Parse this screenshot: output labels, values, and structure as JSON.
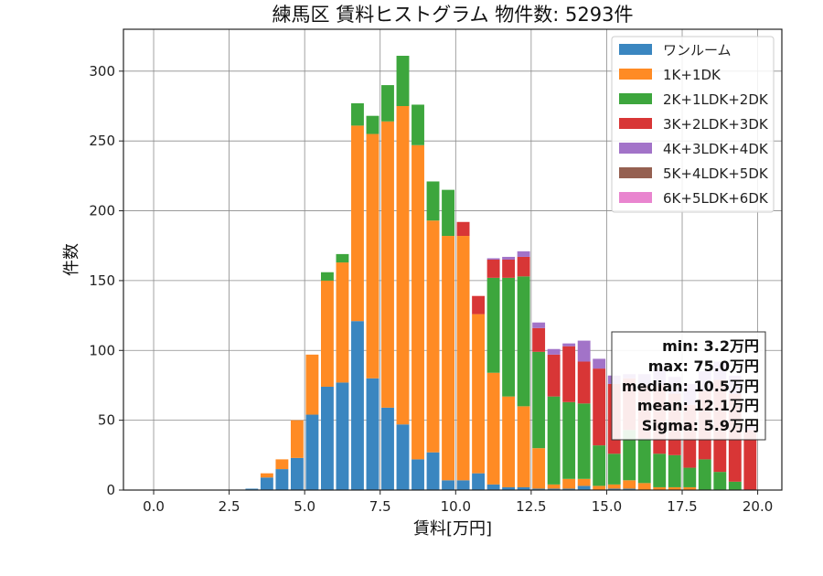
{
  "chart_data": {
    "type": "bar",
    "stacked": true,
    "title": "練馬区 賃料ヒストグラム  物件数: 5293件",
    "xlabel": "賃料[万円]",
    "ylabel": "件数",
    "xlim": [
      -1.0,
      20.8
    ],
    "ylim": [
      0,
      330
    ],
    "xticks": [
      0.0,
      2.5,
      5.0,
      7.5,
      10.0,
      12.5,
      15.0,
      17.5,
      20.0
    ],
    "xtick_labels": [
      "0.0",
      "2.5",
      "5.0",
      "7.5",
      "10.0",
      "12.5",
      "15.0",
      "17.5",
      "20.0"
    ],
    "yticks": [
      0,
      50,
      100,
      150,
      200,
      250,
      300
    ],
    "ytick_labels": [
      "0",
      "50",
      "100",
      "150",
      "200",
      "250",
      "300"
    ],
    "grid": true,
    "legend_position": "top-right",
    "bin_width": 0.5,
    "bins": [
      3.0,
      3.5,
      4.0,
      4.5,
      5.0,
      5.5,
      6.0,
      6.5,
      7.0,
      7.5,
      8.0,
      8.5,
      9.0,
      9.5,
      10.0,
      10.5,
      11.0,
      11.5,
      12.0,
      12.5,
      13.0,
      13.5,
      14.0,
      14.5,
      15.0,
      15.5,
      16.0,
      16.5,
      17.0,
      17.5,
      18.0,
      18.5,
      19.0,
      19.5
    ],
    "series": [
      {
        "name": "ワンルーム",
        "color": "#3a86c0",
        "values": [
          1,
          9,
          15,
          23,
          54,
          74,
          77,
          121,
          80,
          59,
          47,
          22,
          27,
          7,
          7,
          12,
          4,
          2,
          2,
          1,
          1,
          1,
          3,
          0,
          1,
          1,
          0,
          0,
          0,
          0,
          0,
          0,
          0,
          0
        ]
      },
      {
        "name": "1K+1DK",
        "color": "#ff8b24",
        "values": [
          0,
          3,
          7,
          27,
          43,
          76,
          86,
          140,
          175,
          205,
          228,
          225,
          166,
          175,
          175,
          114,
          80,
          65,
          58,
          29,
          3,
          7,
          5,
          3,
          3,
          6,
          5,
          2,
          2,
          2,
          0,
          0,
          0,
          0
        ]
      },
      {
        "name": "2K+1LDK+2DK",
        "color": "#3da63d",
        "values": [
          0,
          0,
          0,
          0,
          0,
          6,
          6,
          16,
          13,
          26,
          36,
          29,
          28,
          33,
          0,
          0,
          68,
          85,
          93,
          69,
          63,
          55,
          54,
          29,
          22,
          36,
          32,
          24,
          23,
          14,
          22,
          13,
          6,
          0
        ]
      },
      {
        "name": "3K+2LDK+3DK",
        "color": "#d83636",
        "values": [
          0,
          0,
          0,
          0,
          0,
          0,
          0,
          0,
          0,
          0,
          0,
          0,
          0,
          0,
          10,
          13,
          13,
          13,
          14,
          17,
          30,
          40,
          30,
          55,
          50,
          37,
          38,
          49,
          44,
          45,
          49,
          66,
          63,
          43
        ]
      },
      {
        "name": "4K+3LDK+4DK",
        "color": "#a273c8",
        "values": [
          0,
          0,
          0,
          0,
          0,
          0,
          0,
          0,
          0,
          0,
          0,
          0,
          0,
          0,
          0,
          0,
          1,
          2,
          4,
          4,
          4,
          2,
          15,
          7,
          6,
          3,
          8,
          12,
          12,
          15,
          14,
          13,
          13,
          4
        ]
      },
      {
        "name": "5K+4LDK+5DK",
        "color": "#956051",
        "values": [
          0,
          0,
          0,
          0,
          0,
          0,
          0,
          0,
          0,
          0,
          0,
          0,
          0,
          0,
          0,
          0,
          0,
          0,
          0,
          0,
          0,
          0,
          0,
          0,
          0,
          0,
          0,
          0,
          0,
          0,
          0,
          0,
          0,
          0
        ]
      },
      {
        "name": "6K+5LDK+6DK",
        "color": "#e985cf",
        "values": [
          0,
          0,
          0,
          0,
          0,
          0,
          0,
          0,
          0,
          0,
          0,
          0,
          0,
          0,
          0,
          0,
          0,
          0,
          0,
          0,
          0,
          0,
          0,
          0,
          0,
          0,
          0,
          0,
          0,
          0,
          0,
          0,
          0,
          0
        ]
      }
    ],
    "stats": {
      "min": "min: 3.2万円",
      "max": "max: 75.0万円",
      "median": "median: 10.5万円",
      "mean": "mean: 12.1万円",
      "sigma": "Sigma: 5.9万円"
    }
  }
}
